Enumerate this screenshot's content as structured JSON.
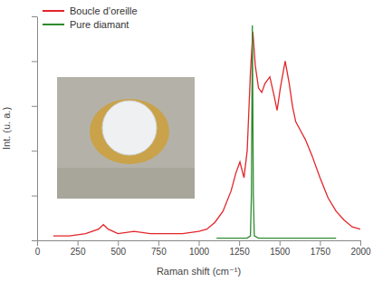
{
  "chart_data": {
    "type": "line",
    "x_label": "Raman shift (cm⁻¹)",
    "y_label": "Int. (u. a.)",
    "xlim": [
      0,
      2000
    ],
    "xticks": [
      0,
      250,
      500,
      750,
      1000,
      1250,
      1500,
      1750,
      2000
    ],
    "ylim": [
      0,
      1
    ],
    "yticks": [
      0,
      0.2,
      0.4,
      0.6,
      0.8,
      1
    ],
    "tick_labels": "x",
    "legend": "upper left",
    "series": [
      {
        "name": "Boucle d’oreille",
        "color": "#e3262a",
        "line_style": "solid",
        "x": [
          100,
          200,
          300,
          380,
          410,
          440,
          500,
          600,
          700,
          800,
          900,
          1000,
          1050,
          1100,
          1150,
          1200,
          1230,
          1255,
          1280,
          1300,
          1320,
          1335,
          1350,
          1370,
          1390,
          1410,
          1440,
          1465,
          1485,
          1505,
          1535,
          1560,
          1580,
          1600,
          1630,
          1660,
          1700,
          1750,
          1800,
          1850,
          1900,
          1950,
          2000
        ],
        "values": [
          0.02,
          0.02,
          0.03,
          0.05,
          0.07,
          0.05,
          0.03,
          0.04,
          0.03,
          0.03,
          0.03,
          0.04,
          0.05,
          0.08,
          0.13,
          0.22,
          0.3,
          0.35,
          0.28,
          0.4,
          0.75,
          0.93,
          0.78,
          0.68,
          0.66,
          0.7,
          0.73,
          0.65,
          0.58,
          0.68,
          0.8,
          0.7,
          0.6,
          0.53,
          0.49,
          0.45,
          0.38,
          0.28,
          0.19,
          0.13,
          0.09,
          0.06,
          0.05
        ]
      },
      {
        "name": "Pure diamant",
        "color": "#2e8b2e",
        "line_style": "solid",
        "x": [
          1110,
          1200,
          1300,
          1320,
          1326,
          1332,
          1338,
          1344,
          1370,
          1500,
          1700,
          1850
        ],
        "values": [
          0.01,
          0.01,
          0.01,
          0.02,
          0.2,
          0.96,
          0.2,
          0.02,
          0.01,
          0.01,
          0.01,
          0.01
        ]
      }
    ]
  }
}
